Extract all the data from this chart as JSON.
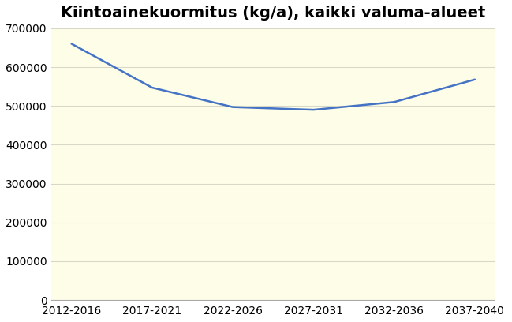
{
  "title": "Kiintoainekuormitus (kg/a), kaikki valuma-alueet",
  "categories": [
    "2012-2016",
    "2017-2021",
    "2022-2026",
    "2027-2031",
    "2032-2036",
    "2037-2040"
  ],
  "values": [
    660000,
    547000,
    497000,
    490000,
    510000,
    568000
  ],
  "line_color": "#4472C4",
  "line_width": 1.8,
  "background_color": "#FEFEE8",
  "plot_bg_color": "#FEFEE8",
  "ylim": [
    0,
    700000
  ],
  "yticks": [
    0,
    100000,
    200000,
    300000,
    400000,
    500000,
    600000,
    700000
  ],
  "grid_color": "#D8D8C8",
  "title_fontsize": 14,
  "tick_fontsize": 10,
  "outer_bg": "#FFFFFF"
}
